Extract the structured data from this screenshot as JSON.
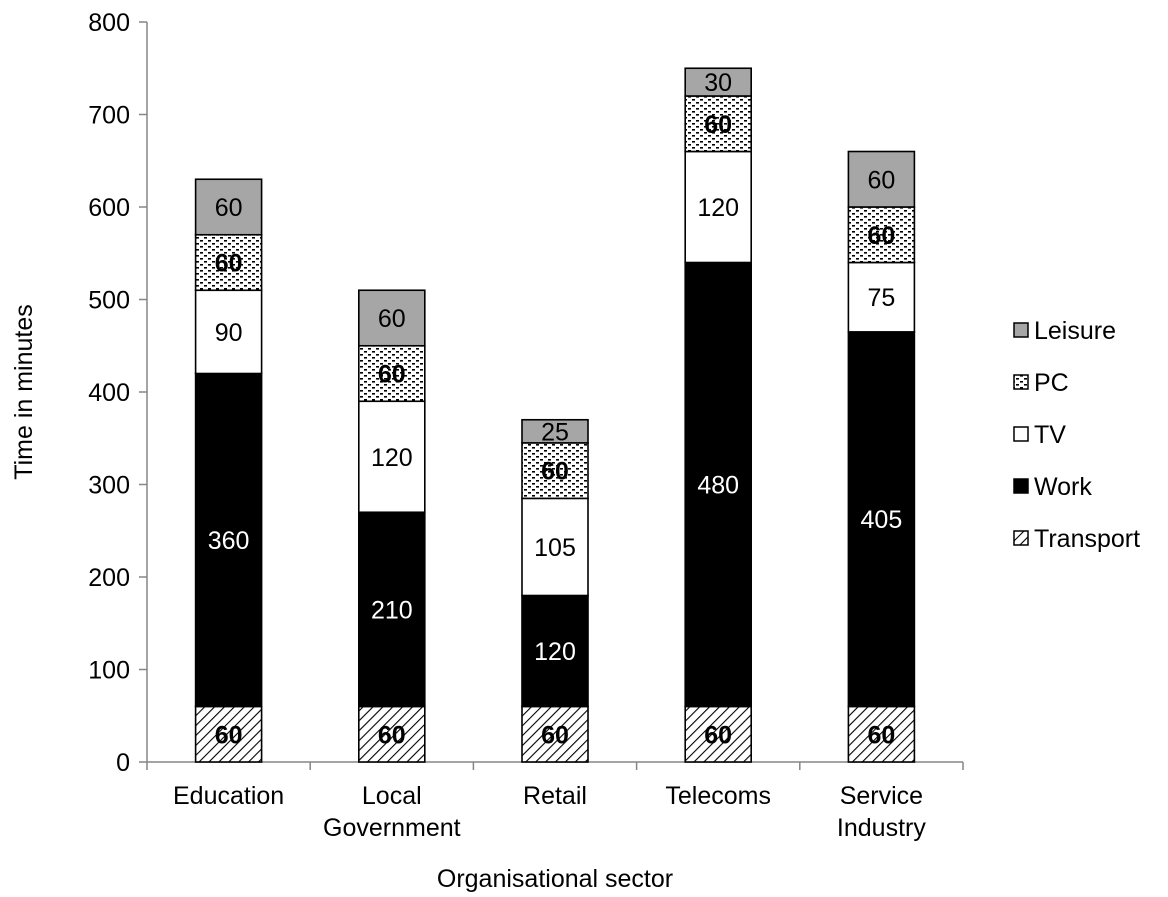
{
  "chart_data": {
    "type": "bar",
    "stacked": true,
    "xlabel": "Organisational sector",
    "ylabel": "Time in minutes",
    "ylim": [
      0,
      800
    ],
    "ytick_step": 100,
    "yticks": [
      "0",
      "100",
      "200",
      "300",
      "400",
      "500",
      "600",
      "700",
      "800"
    ],
    "grid": false,
    "legend_position": "right",
    "categories": [
      [
        "Education"
      ],
      [
        "Local",
        "Government"
      ],
      [
        "Retail"
      ],
      [
        "Telecoms"
      ],
      [
        "Service",
        "Industry"
      ]
    ],
    "series": [
      {
        "name": "Transport",
        "pattern": "diagonal-hatch",
        "label_color": "#000000",
        "label_bold": true,
        "values": [
          60,
          60,
          60,
          60,
          60
        ]
      },
      {
        "name": "Work",
        "pattern": "solid",
        "fill": "#000000",
        "label_color": "#ffffff",
        "label_bold": false,
        "values": [
          360,
          210,
          120,
          480,
          405
        ]
      },
      {
        "name": "TV",
        "pattern": "solid",
        "fill": "#ffffff",
        "label_color": "#000000",
        "label_bold": false,
        "values": [
          90,
          120,
          105,
          120,
          75
        ]
      },
      {
        "name": "PC",
        "pattern": "dotted",
        "label_color": "#000000",
        "label_bold": true,
        "values": [
          60,
          60,
          60,
          60,
          60
        ]
      },
      {
        "name": "Leisure",
        "pattern": "solid",
        "fill": "#a6a6a6",
        "label_color": "#000000",
        "label_bold": false,
        "values": [
          60,
          60,
          25,
          30,
          60
        ]
      }
    ],
    "legend_order": [
      "Leisure",
      "PC",
      "TV",
      "Work",
      "Transport"
    ]
  }
}
